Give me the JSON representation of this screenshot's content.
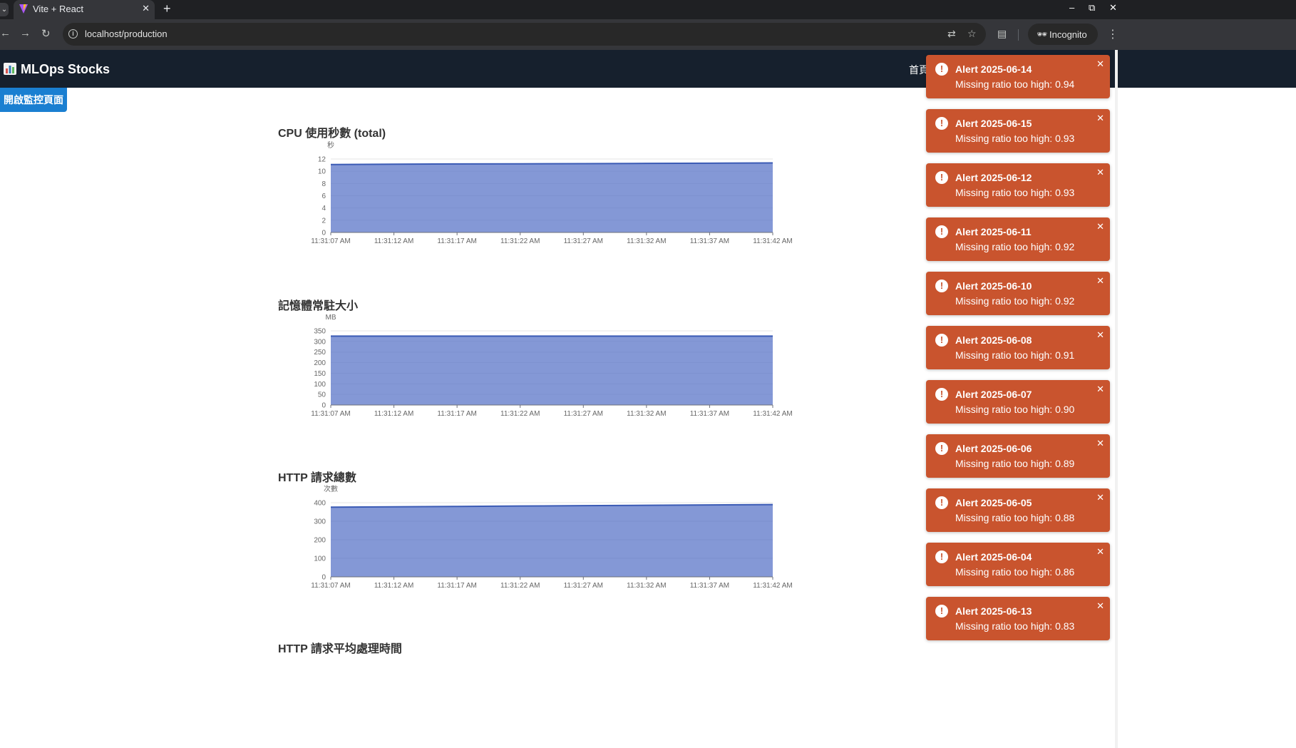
{
  "browser": {
    "tab_caret": "⌄",
    "tab_title": "Vite + React",
    "tab_close": "✕",
    "new_tab": "+",
    "url": "localhost/production",
    "incognito_label": "Incognito",
    "window_controls": [
      "–",
      "⧉",
      "✕"
    ]
  },
  "header": {
    "brand": "MLOps Stocks",
    "nav_home": "首頁"
  },
  "monitor_button_label": "開啟監控頁面",
  "charts": [
    {
      "title": "CPU 使用秒數 (total)",
      "unit": "秒",
      "yticks": [
        "0",
        "2",
        "4",
        "6",
        "8",
        "10",
        "12"
      ],
      "xticks": [
        "11:31:07 AM",
        "11:31:12 AM",
        "11:31:17 AM",
        "11:31:22 AM",
        "11:31:27 AM",
        "11:31:32 AM",
        "11:31:37 AM",
        "11:31:42 AM"
      ]
    },
    {
      "title": "記憶體常駐大小",
      "unit": "MB",
      "yticks": [
        "0",
        "50",
        "100",
        "150",
        "200",
        "250",
        "300",
        "350"
      ],
      "xticks": [
        "11:31:07 AM",
        "11:31:12 AM",
        "11:31:17 AM",
        "11:31:22 AM",
        "11:31:27 AM",
        "11:31:32 AM",
        "11:31:37 AM",
        "11:31:42 AM"
      ]
    },
    {
      "title": "HTTP 請求總數",
      "unit": "次數",
      "yticks": [
        "0",
        "100",
        "200",
        "300",
        "400"
      ],
      "xticks": [
        "11:31:07 AM",
        "11:31:12 AM",
        "11:31:17 AM",
        "11:31:22 AM",
        "11:31:27 AM",
        "11:31:32 AM",
        "11:31:37 AM",
        "11:31:42 AM"
      ]
    },
    {
      "title": "HTTP 請求平均處理時間"
    }
  ],
  "chart_data": [
    {
      "type": "area",
      "title": "CPU 使用秒數 (total)",
      "ylabel": "秒",
      "ylim": [
        0,
        12
      ],
      "x": [
        "11:31:07 AM",
        "11:31:12 AM",
        "11:31:17 AM",
        "11:31:22 AM",
        "11:31:27 AM",
        "11:31:32 AM",
        "11:31:37 AM",
        "11:31:42 AM"
      ],
      "values": [
        11.1,
        11.15,
        11.2,
        11.22,
        11.25,
        11.28,
        11.32,
        11.36
      ],
      "grid": true,
      "color": "#5470c6"
    },
    {
      "type": "area",
      "title": "記憶體常駐大小",
      "ylabel": "MB",
      "ylim": [
        0,
        350
      ],
      "x": [
        "11:31:07 AM",
        "11:31:12 AM",
        "11:31:17 AM",
        "11:31:22 AM",
        "11:31:27 AM",
        "11:31:32 AM",
        "11:31:37 AM",
        "11:31:42 AM"
      ],
      "values": [
        325,
        325,
        325,
        325,
        325,
        325,
        325,
        325
      ],
      "grid": true,
      "color": "#5470c6"
    },
    {
      "type": "area",
      "title": "HTTP 請求總數",
      "ylabel": "次數",
      "ylim": [
        0,
        400
      ],
      "x": [
        "11:31:07 AM",
        "11:31:12 AM",
        "11:31:17 AM",
        "11:31:22 AM",
        "11:31:27 AM",
        "11:31:32 AM",
        "11:31:37 AM",
        "11:31:42 AM"
      ],
      "values": [
        376,
        378,
        380,
        382,
        384,
        386,
        388,
        390
      ],
      "grid": true,
      "color": "#5470c6"
    }
  ],
  "toasts": [
    {
      "title": "Alert 2025-06-14",
      "message": "Missing ratio too high: 0.94"
    },
    {
      "title": "Alert 2025-06-15",
      "message": "Missing ratio too high: 0.93"
    },
    {
      "title": "Alert 2025-06-12",
      "message": "Missing ratio too high: 0.93"
    },
    {
      "title": "Alert 2025-06-11",
      "message": "Missing ratio too high: 0.92"
    },
    {
      "title": "Alert 2025-06-10",
      "message": "Missing ratio too high: 0.92"
    },
    {
      "title": "Alert 2025-06-08",
      "message": "Missing ratio too high: 0.91"
    },
    {
      "title": "Alert 2025-06-07",
      "message": "Missing ratio too high: 0.90"
    },
    {
      "title": "Alert 2025-06-06",
      "message": "Missing ratio too high: 0.89"
    },
    {
      "title": "Alert 2025-06-05",
      "message": "Missing ratio too high: 0.88"
    },
    {
      "title": "Alert 2025-06-04",
      "message": "Missing ratio too high: 0.86"
    },
    {
      "title": "Alert 2025-06-13",
      "message": "Missing ratio too high: 0.83"
    }
  ],
  "colors": {
    "toast_bg": "#c9542e",
    "header_bg": "#16202d",
    "button_bg": "#1a7fd1",
    "series": "#5470c6"
  }
}
